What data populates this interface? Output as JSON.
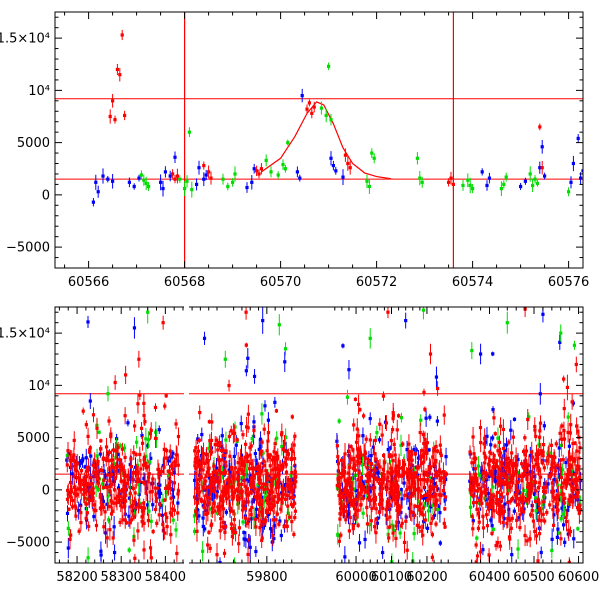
{
  "chart_data": [
    {
      "type": "scatter",
      "title": "",
      "xlabel": "",
      "ylabel": "",
      "xlim": [
        60565.3,
        60576.3
      ],
      "ylim": [
        -7000,
        17500
      ],
      "grid": false,
      "legend": "none",
      "x_ticks": [
        60566,
        60568,
        60570,
        60572,
        60574,
        60576
      ],
      "x_tick_labels": [
        "60566",
        "60568",
        "60570",
        "60572",
        "60574",
        "60576"
      ],
      "y_ticks": [
        -5000,
        0,
        5000,
        10000,
        15000
      ],
      "y_tick_labels": [
        "−5000",
        "0",
        "5000",
        "10⁴",
        "1.5×10⁴"
      ],
      "reference_lines": {
        "horizontal": [
          9200,
          1500
        ],
        "vertical": [
          60568.0,
          60573.6
        ]
      },
      "model_curve": {
        "color": "#ff0000",
        "x": [
          60569.6,
          60570.0,
          60570.3,
          60570.55,
          60570.75,
          60570.9,
          60571.1,
          60571.3,
          60571.5,
          60571.75,
          60572.0,
          60572.3
        ],
        "y": [
          2200,
          3500,
          5600,
          7800,
          8900,
          8600,
          6800,
          4500,
          3000,
          2100,
          1750,
          1550
        ]
      },
      "series": [
        {
          "color": "#0000ff",
          "x": [
            60566.1,
            60566.15,
            60566.2,
            60566.3,
            60566.4,
            60566.5,
            60566.85,
            60566.95,
            60567.05,
            60567.5,
            60567.55,
            60567.6,
            60567.7,
            60567.8,
            60568.25,
            60568.3,
            60568.4,
            60568.45,
            60569.3,
            60569.4,
            60569.45,
            60570.35,
            60570.4,
            60570.45,
            60571.05,
            60571.1,
            60571.15,
            60571.3,
            60574.2,
            60574.3,
            60574.35,
            60575.0,
            60575.1,
            60575.4,
            60575.45,
            60575.5,
            60576.05,
            60576.1,
            60576.2,
            60576.25,
            60576.3
          ],
          "y": [
            -700,
            1200,
            300,
            1800,
            1500,
            1300,
            1200,
            800,
            1600,
            1200,
            600,
            2200,
            1800,
            3600,
            1000,
            2600,
            1500,
            1900,
            700,
            1200,
            2500,
            2200,
            1600,
            9500,
            3500,
            2800,
            2300,
            1700,
            2200,
            900,
            1600,
            800,
            1300,
            2600,
            4600,
            1800,
            1200,
            3000,
            5400,
            1600,
            2300
          ]
        },
        {
          "color": "#00dd00",
          "x": [
            60567.1,
            60567.15,
            60567.2,
            60567.25,
            60567.9,
            60568.0,
            60568.05,
            60568.1,
            60568.15,
            60568.8,
            60568.9,
            60569.0,
            60569.05,
            60569.7,
            60569.8,
            60569.95,
            60570.05,
            60570.1,
            60570.15,
            60570.85,
            60570.95,
            60571.0,
            60571.05,
            60571.8,
            60571.85,
            60571.9,
            60571.95,
            60572.85,
            60572.9,
            60572.95,
            60573.8,
            60573.9,
            60573.95,
            60574.0,
            60574.6,
            60574.65,
            60574.7,
            60575.2,
            60575.25,
            60575.3,
            60575.35,
            60576.0
          ],
          "y": [
            1900,
            1400,
            1100,
            800,
            1500,
            600,
            1300,
            6000,
            500,
            1500,
            800,
            1200,
            2000,
            3300,
            2200,
            1900,
            2900,
            2500,
            5000,
            8300,
            7600,
            12300,
            7200,
            1300,
            800,
            4000,
            3500,
            3500,
            1600,
            1200,
            900,
            1400,
            900,
            600,
            600,
            1000,
            1700,
            2000,
            900,
            1500,
            1100,
            300
          ]
        },
        {
          "color": "#ff0000",
          "x": [
            60566.45,
            60566.5,
            60566.55,
            60566.6,
            60566.65,
            60566.7,
            60566.75,
            60567.75,
            60567.8,
            60567.85,
            60568.4,
            60568.5,
            60568.55,
            60569.5,
            60569.55,
            60569.6,
            60570.55,
            60570.6,
            60570.65,
            60570.7,
            60571.35,
            60571.4,
            60571.45,
            60573.5,
            60573.55,
            60573.6,
            60575.4,
            60575.45
          ],
          "y": [
            7500,
            9000,
            7200,
            12000,
            11500,
            15300,
            7600,
            2000,
            1500,
            1800,
            2800,
            2200,
            1600,
            2300,
            2000,
            2500,
            8200,
            8800,
            7800,
            8400,
            3800,
            3000,
            2600,
            1200,
            1600,
            1000,
            6500,
            2600
          ]
        }
      ]
    },
    {
      "type": "scatter",
      "title": "",
      "xlabel": "",
      "ylabel": "",
      "x_axis": "broken",
      "segments": [
        {
          "xlim": [
            58150,
            58440
          ],
          "x_ticks": [
            58200,
            58300,
            58400
          ],
          "x_tick_labels": [
            "58200",
            "58300",
            "58400"
          ]
        },
        {
          "xlim": [
            59615,
            59875
          ],
          "x_ticks": [
            59800
          ],
          "x_tick_labels": [
            "59800"
          ]
        },
        {
          "xlim": [
            59935,
            60265
          ],
          "x_ticks": [
            60000,
            60100,
            60200
          ],
          "x_tick_labels": [
            "60000",
            "60100",
            "60200"
          ]
        },
        {
          "xlim": [
            60345,
            60610
          ],
          "x_ticks": [
            60400,
            60500,
            60600
          ],
          "x_tick_labels": [
            "60400",
            "60500",
            "60600"
          ]
        }
      ],
      "ylim": [
        -7000,
        17500
      ],
      "grid": false,
      "legend": "none",
      "y_ticks": [
        -5000,
        0,
        5000,
        10000,
        15000
      ],
      "y_tick_labels": [
        "−5000",
        "0",
        "5000",
        "10⁴",
        "1.5×10⁴"
      ],
      "reference_lines": {
        "horizontal": [
          9200,
          1500
        ]
      },
      "series_colors": [
        "#0000ff",
        "#00dd00",
        "#ff0000"
      ],
      "clusters": [
        {
          "x_range": [
            58175,
            58430
          ],
          "y_center": 500,
          "y_spread": 2200,
          "points_per_series": [
            120,
            40,
            320
          ],
          "outliers": {
            "x": [
              58230,
              58270,
              58310,
              58330,
              58360,
              58395,
              58285,
              58225,
              58340
            ],
            "y": [
              8500,
              9200,
              11000,
              15500,
              17000,
              16000,
              -6000,
              -6500,
              12500
            ]
          }
        },
        {
          "x_range": [
            59625,
            59870
          ],
          "y_center": 500,
          "y_spread": 2500,
          "points_per_series": [
            140,
            50,
            420
          ],
          "outliers": {
            "x": [
              59650,
              59700,
              59750,
              59790,
              59830,
              59680,
              59760,
              59845
            ],
            "y": [
              14500,
              12500,
              17000,
              16200,
              15800,
              -6200,
              -5500,
              13500
            ]
          }
        },
        {
          "x_range": [
            59945,
            60255
          ],
          "y_center": 500,
          "y_spread": 2400,
          "points_per_series": [
            140,
            50,
            420
          ],
          "outliers": {
            "x": [
              59980,
              60040,
              60090,
              60140,
              60190,
              60230,
              60075,
              60160,
              60210
            ],
            "y": [
              11500,
              14500,
              17000,
              16200,
              17200,
              9700,
              -6000,
              -6800,
              13000
            ]
          }
        },
        {
          "x_range": [
            60355,
            60605
          ],
          "y_center": 500,
          "y_spread": 2400,
          "points_per_series": [
            140,
            50,
            420
          ],
          "outliers": {
            "x": [
              60380,
              60440,
              60480,
              60520,
              60560,
              60595,
              60450,
              60540,
              60575
            ],
            "y": [
              13000,
              16000,
              17300,
              16800,
              15000,
              12000,
              -6200,
              -5800,
              9800
            ]
          }
        }
      ]
    }
  ]
}
